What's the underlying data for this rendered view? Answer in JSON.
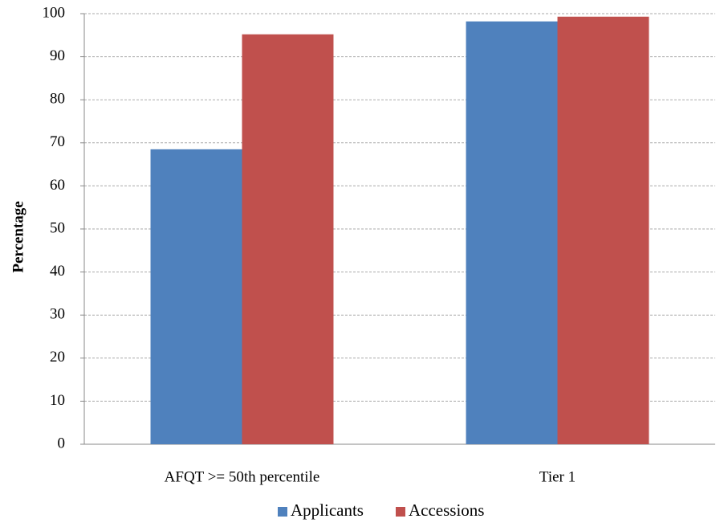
{
  "chart_data": {
    "type": "bar",
    "y_label": "Percentage",
    "categories": [
      "AFQT >= 50th percentile",
      "Tier 1"
    ],
    "series": [
      {
        "name": "Applicants",
        "color": "#4f81bd",
        "values": [
          68.5,
          98.2
        ]
      },
      {
        "name": "Accessions",
        "color": "#c0504d",
        "values": [
          95.2,
          99.3
        ]
      }
    ],
    "ylim": [
      0,
      100
    ],
    "yticks": [
      0,
      10,
      20,
      30,
      40,
      50,
      60,
      70,
      80,
      90,
      100
    ],
    "grid": true,
    "legend": "bottom"
  }
}
